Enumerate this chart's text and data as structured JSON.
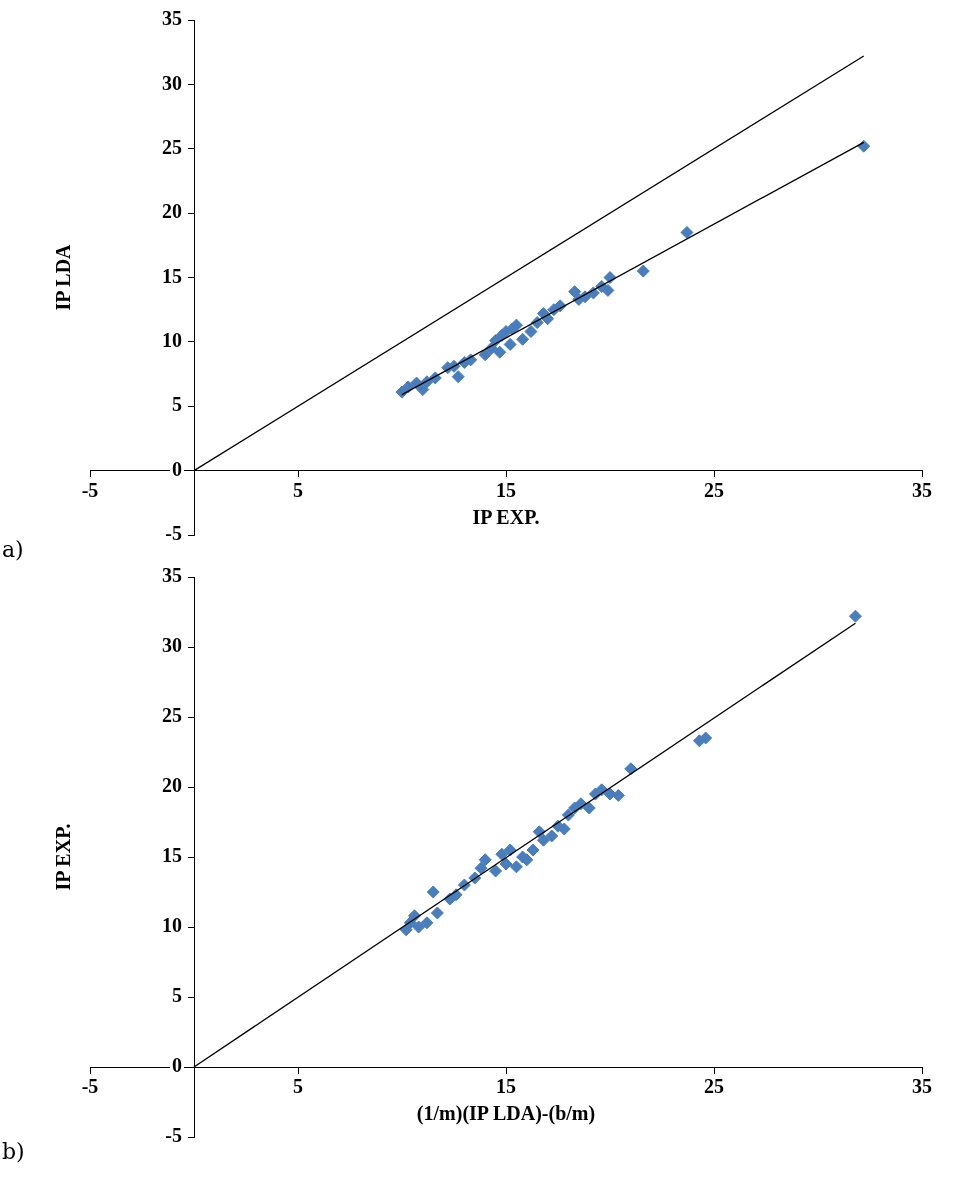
{
  "chart_data": [
    {
      "type": "scatter",
      "xlabel": "IP EXP.",
      "ylabel": "IP LDA",
      "marker": "diamond",
      "grid": false,
      "legend": false,
      "xlim": [
        -5,
        35
      ],
      "xticks": [
        -5,
        5,
        15,
        25,
        35
      ],
      "ylim": [
        -5,
        35
      ],
      "yticks": [
        -5,
        0,
        5,
        10,
        15,
        20,
        25,
        30,
        35
      ],
      "annotations": [
        "a)"
      ],
      "series": [
        {
          "color": "#4a7ebb",
          "x": [
            10,
            10.3,
            10.7,
            11,
            11.2,
            11.6,
            12.2,
            12.5,
            12.7,
            13,
            13.3,
            14,
            14.3,
            14.5,
            14.7,
            14.8,
            15,
            15.2,
            15.3,
            15.5,
            15.8,
            16.2,
            16.5,
            16.8,
            17,
            17.3,
            17.6,
            18.3,
            18.5,
            18.8,
            19.2,
            19.6,
            19.9,
            20,
            21.6,
            23.7,
            32.2
          ],
          "values": [
            6.1,
            6.5,
            6.8,
            6.3,
            6.9,
            7.2,
            8.0,
            8.1,
            7.3,
            8.4,
            8.6,
            9.0,
            9.5,
            10.1,
            9.2,
            10.5,
            10.8,
            9.8,
            11.0,
            11.3,
            10.2,
            10.8,
            11.5,
            12.2,
            11.8,
            12.5,
            12.8,
            13.9,
            13.3,
            13.5,
            13.8,
            14.3,
            14.0,
            15.0,
            15.5,
            18.5,
            25.2
          ]
        },
        {
          "type": "line",
          "color": "#000000",
          "marker": "none",
          "line_style": "solid",
          "x": [
            10,
            32.2
          ],
          "values": [
            5.9,
            25.5
          ]
        },
        {
          "type": "line",
          "color": "#000000",
          "marker": "none",
          "line_style": "solid",
          "x": [
            0,
            32.2
          ],
          "values": [
            0,
            32.2
          ]
        }
      ]
    },
    {
      "type": "scatter",
      "xlabel": "(1/m)(IP LDA)-(b/m)",
      "ylabel": "IP EXP.",
      "marker": "diamond",
      "grid": false,
      "legend": false,
      "xlim": [
        -5,
        35
      ],
      "xticks": [
        -5,
        5,
        15,
        25,
        35
      ],
      "ylim": [
        -5,
        35
      ],
      "yticks": [
        -5,
        0,
        5,
        10,
        15,
        20,
        25,
        30,
        35
      ],
      "annotations": [
        "b)"
      ],
      "series": [
        {
          "color": "#4a7ebb",
          "x": [
            10.2,
            10.4,
            10.6,
            10.8,
            11.2,
            11.5,
            11.7,
            12.3,
            12.6,
            13,
            13.5,
            13.8,
            14,
            14.5,
            14.8,
            15,
            15.2,
            15.5,
            15.8,
            16,
            16.3,
            16.6,
            16.8,
            17.2,
            17.5,
            17.8,
            18,
            18.3,
            18.6,
            19,
            19.3,
            19.6,
            20,
            20.4,
            21,
            24.3,
            24.6,
            31.8
          ],
          "values": [
            9.8,
            10.3,
            10.8,
            10.0,
            10.3,
            12.5,
            11.0,
            12.0,
            12.3,
            13.0,
            13.5,
            14.2,
            14.8,
            14.0,
            15.2,
            14.5,
            15.5,
            14.3,
            15.0,
            14.8,
            15.5,
            16.8,
            16.2,
            16.5,
            17.2,
            17.0,
            18.0,
            18.5,
            18.8,
            18.5,
            19.5,
            19.8,
            19.5,
            19.4,
            21.3,
            23.3,
            23.5,
            32.2
          ]
        },
        {
          "type": "line",
          "color": "#000000",
          "marker": "none",
          "line_style": "solid",
          "x": [
            0,
            31.8
          ],
          "values": [
            0,
            31.7
          ]
        }
      ]
    }
  ]
}
